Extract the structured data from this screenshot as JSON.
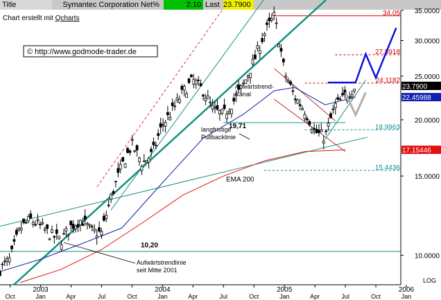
{
  "header": {
    "title_label": "Title",
    "company": "Symantec Corporation",
    "net_pct_label": "Net%",
    "net_pct": "2.10",
    "last_label": "Last",
    "last": "23.7900"
  },
  "credit": {
    "prefix": "Chart erstellt mit ",
    "link": "Qcharts"
  },
  "copyright": "© http://www.godmode-trader.de",
  "colors": {
    "price": "#000000",
    "ema": "#e01010",
    "ma_blue": "#1020a0",
    "trend_teal": "#109080",
    "projection": "#1010e0",
    "fib": "#d00000",
    "header_green": "#00c000",
    "header_yellow": "#f0f000"
  },
  "chart_data": {
    "type": "candlestick",
    "title": "Symantec Corporation",
    "yscale": "log",
    "ylim": [
      8.6,
      35.0
    ],
    "xlim": [
      "2002-09",
      "2006-02"
    ],
    "yticks": [
      "35.0000",
      "30.0000",
      "25.0000",
      "20.0000",
      "15.0000",
      "10.0000"
    ],
    "ylabel_extra": "LOG",
    "xticks": [
      "Oct",
      "2003 Jan",
      "Apr",
      "Jul",
      "Oct",
      "2004 Jan",
      "Apr",
      "Jul",
      "Oct",
      "2005 Jan",
      "Apr",
      "Jul",
      "Oct",
      "2006 Jan"
    ],
    "price_path": [
      [
        "2002-09",
        9.3
      ],
      [
        "2002-10",
        9.8
      ],
      [
        "2002-11",
        11.5
      ],
      [
        "2002-12",
        12.0
      ],
      [
        "2003-01",
        11.6
      ],
      [
        "2003-02",
        11.1
      ],
      [
        "2003-03",
        10.8
      ],
      [
        "2003-04",
        11.6
      ],
      [
        "2003-05",
        12.0
      ],
      [
        "2003-06",
        11.3
      ],
      [
        "2003-07",
        11.2
      ],
      [
        "2003-08",
        13.6
      ],
      [
        "2003-09",
        15.8
      ],
      [
        "2003-10",
        17.6
      ],
      [
        "2003-11",
        16.0
      ],
      [
        "2003-12",
        16.8
      ],
      [
        "2004-01",
        19.5
      ],
      [
        "2004-02",
        21.0
      ],
      [
        "2004-03",
        23.0
      ],
      [
        "2004-04",
        24.5
      ],
      [
        "2004-05",
        23.2
      ],
      [
        "2004-06",
        21.0
      ],
      [
        "2004-07",
        20.5
      ],
      [
        "2004-08",
        22.0
      ],
      [
        "2004-09",
        24.0
      ],
      [
        "2004-10",
        27.0
      ],
      [
        "2004-11",
        31.0
      ],
      [
        "2004-12",
        34.0
      ],
      [
        "2005-01",
        25.5
      ],
      [
        "2005-02",
        22.5
      ],
      [
        "2005-03",
        21.0
      ],
      [
        "2005-04",
        18.8
      ],
      [
        "2005-05",
        18.3
      ],
      [
        "2005-06",
        21.5
      ],
      [
        "2005-07",
        22.5
      ],
      [
        "2005-08",
        23.79
      ]
    ],
    "fib_levels": [
      {
        "value": 34.05,
        "label": "34.05"
      },
      {
        "value": 27.8918,
        "label": "27.8918"
      },
      {
        "value": 24.1182,
        "label": "24.1182"
      },
      {
        "value": 18.9963,
        "label": "18.9963"
      },
      {
        "value": 15.4436,
        "label": "15.4436"
      }
    ],
    "price_tags": [
      {
        "value": 23.79,
        "label": "23.7900",
        "bg": "#000000",
        "fg": "#ffffff"
      },
      {
        "value": 22.45988,
        "label": "22.45988",
        "bg": "#1020b0",
        "fg": "#ffffff"
      },
      {
        "value": 17.15446,
        "label": "17.15446",
        "bg": "#e01010",
        "fg": "#ffffff"
      }
    ],
    "horizontal_levels": [
      {
        "value": 19.71,
        "label": "19,71"
      },
      {
        "value": 10.2,
        "label": "10,20"
      }
    ],
    "annotations": [
      "Abwärtstrend-",
      "Kanal",
      "langfristige",
      "Pullbacklinie",
      "EMA 200",
      "Aufwärtstrendlinie",
      "seit Mitte 2001"
    ],
    "projection": [
      [
        "2005-08",
        24.2
      ],
      [
        "2005-09",
        28.0
      ],
      [
        "2005-10",
        24.8
      ],
      [
        "2005-12",
        32.0
      ]
    ],
    "grey_projection": [
      [
        "2005-07",
        23.0
      ],
      [
        "2005-08",
        20.5
      ],
      [
        "2005-09",
        23.0
      ]
    ]
  }
}
